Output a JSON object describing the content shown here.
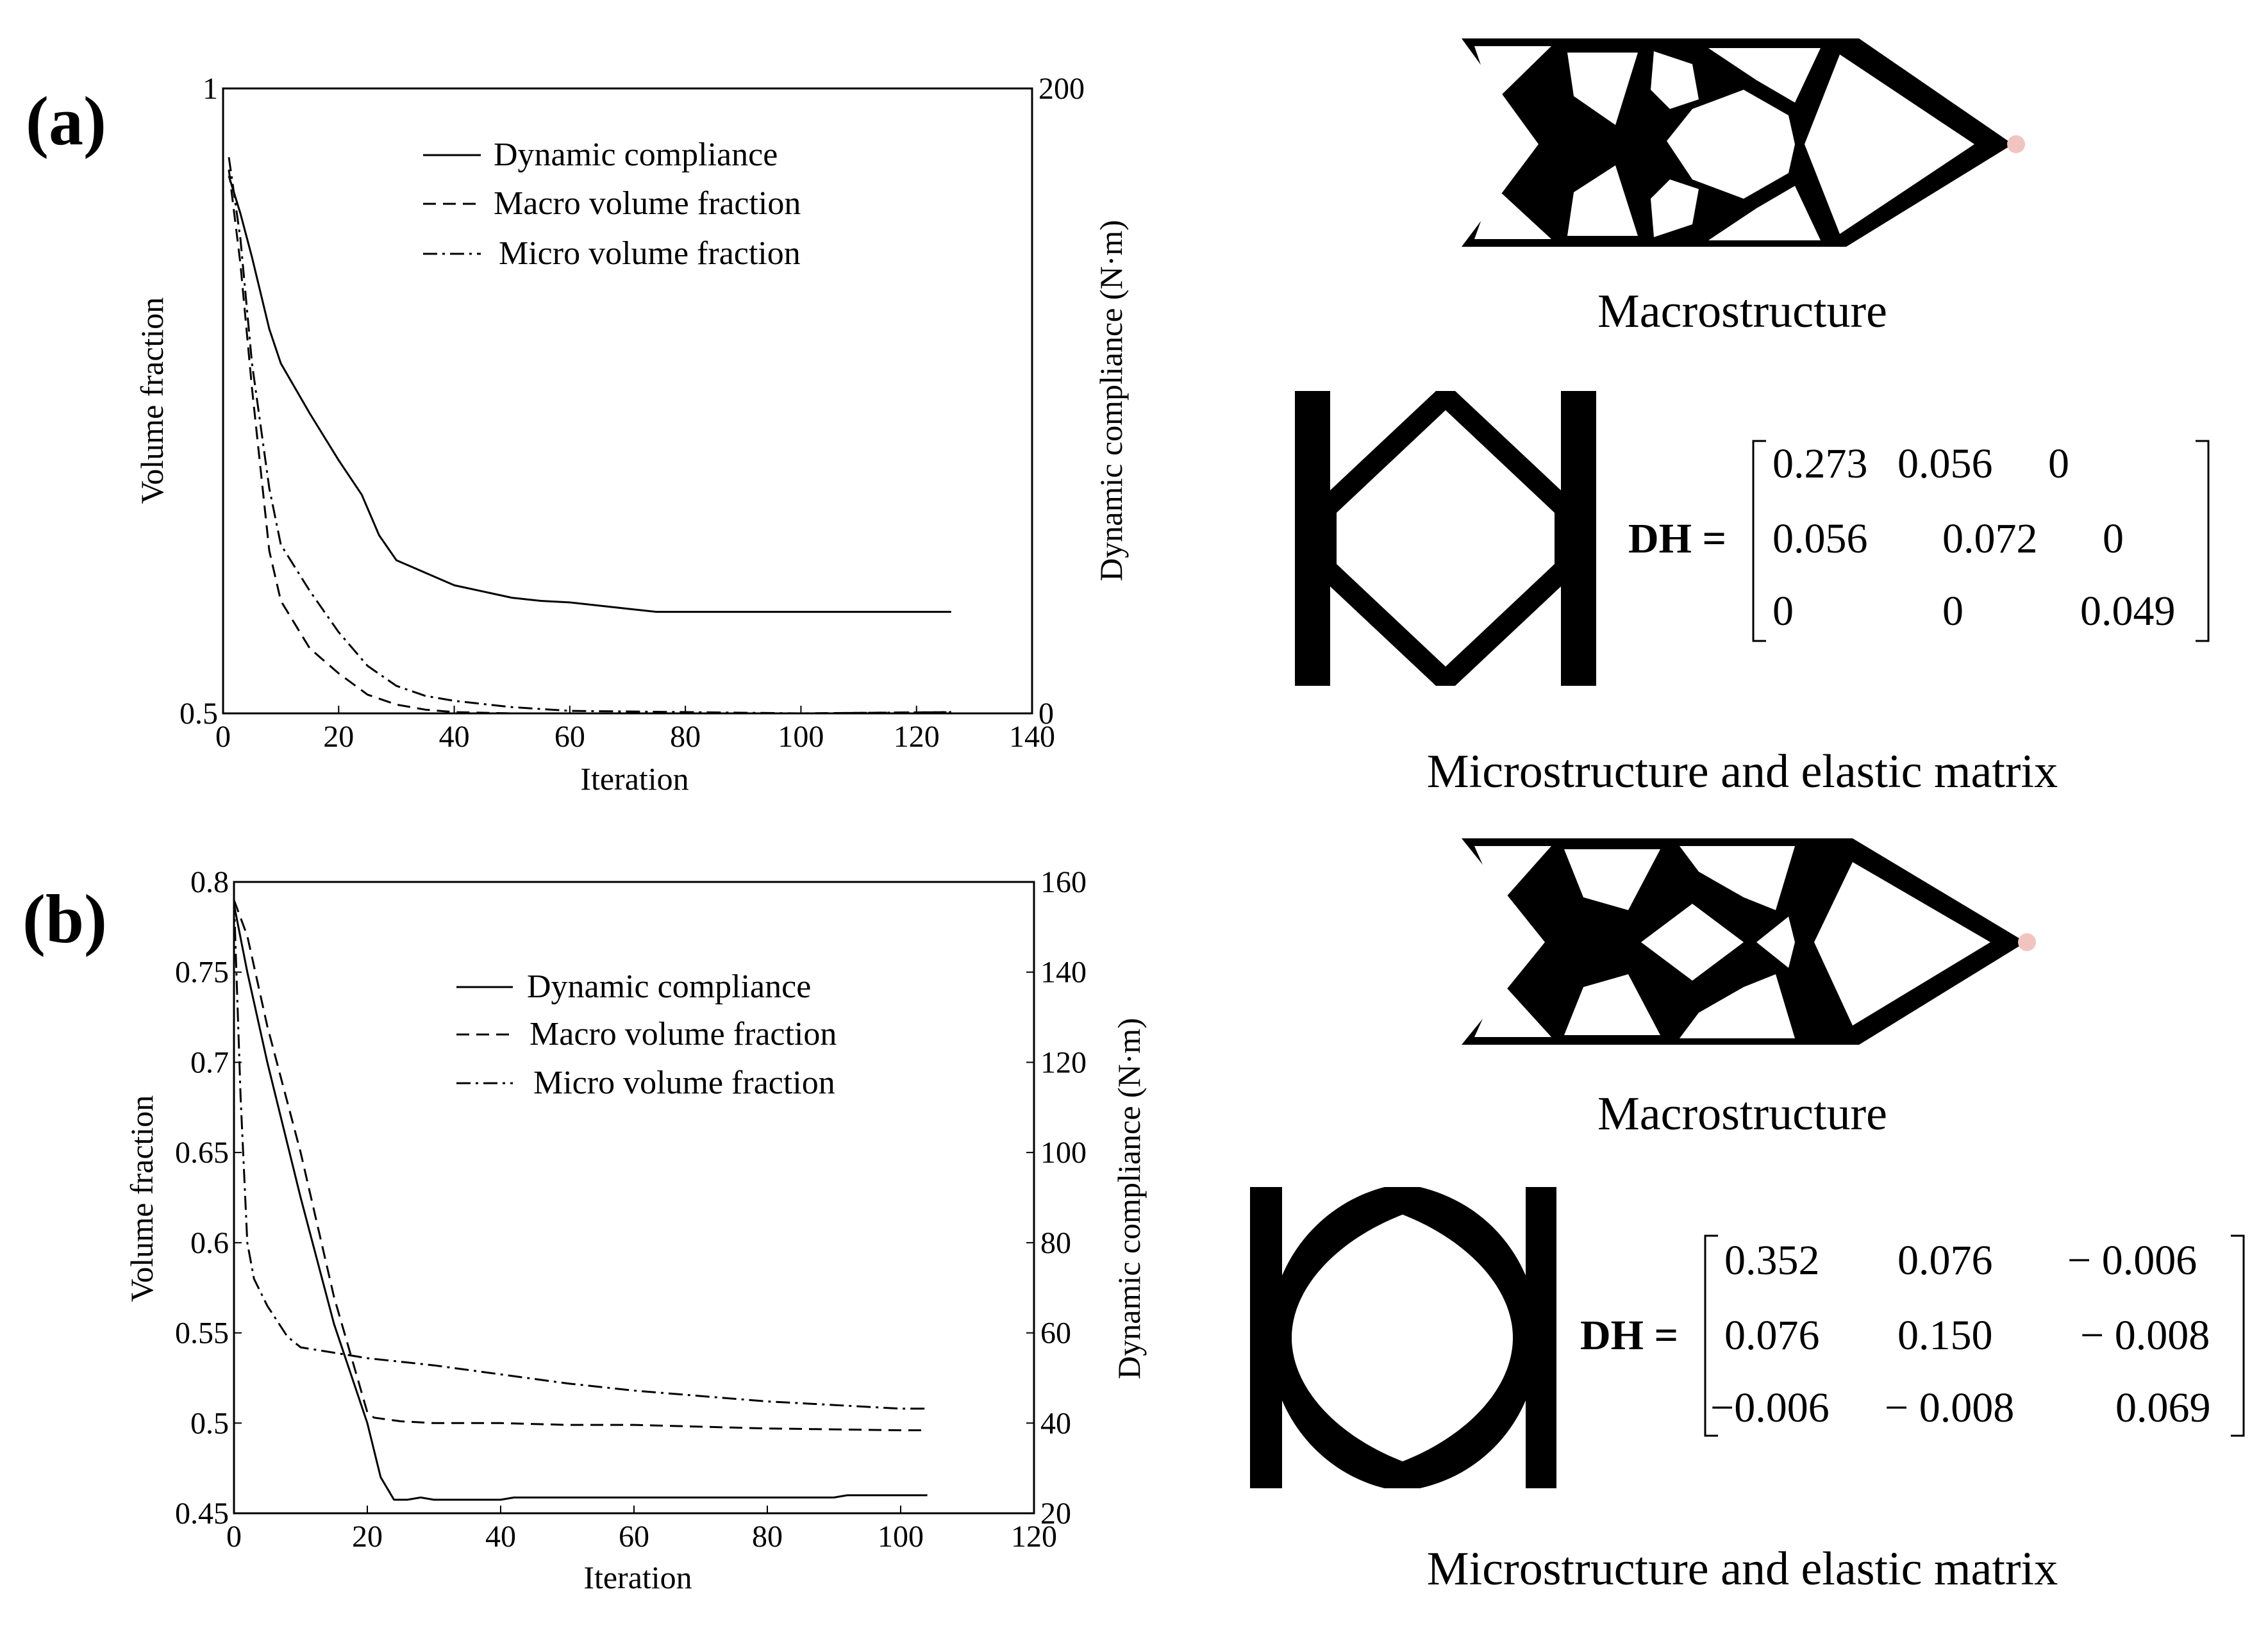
{
  "panels": {
    "a": {
      "label": "(a)",
      "macro_caption": "Macrostructure",
      "micro_caption": "Microstructure and elastic matrix",
      "matrix_label": "DH =",
      "matrix": [
        [
          "0.273",
          "0.056",
          "0"
        ],
        [
          "0.056",
          "0.072",
          "0"
        ],
        [
          "0",
          "0",
          "0.049"
        ]
      ]
    },
    "b": {
      "label": "(b)",
      "macro_caption": "Macrostructure",
      "micro_caption": "Microstructure and elastic matrix",
      "matrix_label": "DH =",
      "matrix": [
        [
          "0.352",
          "0.076",
          "− 0.006"
        ],
        [
          "0.076",
          "0.150",
          "− 0.008"
        ],
        [
          "−0.006",
          "− 0.008",
          "0.069"
        ]
      ]
    }
  },
  "colors": {
    "line": "#000000",
    "background": "#ffffff",
    "axis": "#000000",
    "load_point": "#f2c4c0"
  },
  "chart_data": [
    {
      "id": "a",
      "type": "line",
      "xlabel": "Iteration",
      "ylabel": "Volume fraction",
      "y2label": "Dynamic compliance (N·m)",
      "xlim": [
        0,
        140
      ],
      "ylim": [
        0.5,
        1
      ],
      "y2lim": [
        0,
        200
      ],
      "xticks": [
        "0",
        "20",
        "40",
        "60",
        "80",
        "100",
        "120",
        "140"
      ],
      "xtick_values": [
        0,
        20,
        40,
        60,
        80,
        100,
        120,
        140
      ],
      "yticks": [
        "0.5",
        "1"
      ],
      "ytick_values": [
        0.5,
        1
      ],
      "y2ticks": [
        "0",
        "200"
      ],
      "y2tick_values": [
        0,
        200
      ],
      "legend_position": "top-center",
      "series": [
        {
          "name": "Dynamic compliance",
          "axis": "right",
          "dash": "solid",
          "x": [
            1,
            3,
            5,
            8,
            10,
            15,
            20,
            24,
            27,
            30,
            35,
            40,
            50,
            55,
            60,
            70,
            75,
            80,
            100,
            120,
            126
          ],
          "values": [
            172,
            160,
            146,
            123,
            112,
            96,
            81,
            70,
            57,
            49,
            45,
            41,
            37,
            36,
            35.5,
            33.5,
            32.5,
            32.5,
            32.5,
            32.5,
            32.5
          ]
        },
        {
          "name": "Macro volume fraction",
          "axis": "left",
          "dash": "dashed",
          "x": [
            1,
            3,
            5,
            8,
            10,
            15,
            20,
            25,
            30,
            35,
            40,
            50,
            60,
            80,
            100,
            126
          ],
          "values": [
            0.935,
            0.86,
            0.76,
            0.63,
            0.59,
            0.552,
            0.532,
            0.515,
            0.507,
            0.503,
            0.501,
            0.5,
            0.5,
            0.5,
            0.5,
            0.501
          ]
        },
        {
          "name": "Micro volume fraction",
          "axis": "left",
          "dash": "dashdot",
          "x": [
            1,
            3,
            5,
            8,
            10,
            15,
            20,
            25,
            30,
            35,
            40,
            50,
            60,
            80,
            100,
            126
          ],
          "values": [
            0.945,
            0.88,
            0.78,
            0.68,
            0.635,
            0.598,
            0.565,
            0.538,
            0.522,
            0.514,
            0.51,
            0.505,
            0.502,
            0.501,
            0.5,
            0.501
          ]
        }
      ]
    },
    {
      "id": "b",
      "type": "line",
      "xlabel": "Iteration",
      "ylabel": "Volume fraction",
      "y2label": "Dynamic compliance (N·m)",
      "xlim": [
        0,
        120
      ],
      "ylim": [
        0.45,
        0.8
      ],
      "y2lim": [
        20,
        160
      ],
      "xticks": [
        "0",
        "20",
        "40",
        "60",
        "80",
        "100",
        "120"
      ],
      "xtick_values": [
        0,
        20,
        40,
        60,
        80,
        100,
        120
      ],
      "yticks": [
        "0.45",
        "0.5",
        "0.55",
        "0.6",
        "0.65",
        "0.7",
        "0.75",
        "0.8"
      ],
      "ytick_values": [
        0.45,
        0.5,
        0.55,
        0.6,
        0.65,
        0.7,
        0.75,
        0.8
      ],
      "y2ticks": [
        "20",
        "40",
        "60",
        "80",
        "100",
        "120",
        "140",
        "160"
      ],
      "y2tick_values": [
        20,
        40,
        60,
        80,
        100,
        120,
        140,
        160
      ],
      "legend_position": "top-center",
      "series": [
        {
          "name": "Dynamic compliance",
          "axis": "right",
          "dash": "solid",
          "x": [
            0,
            2,
            5,
            10,
            15,
            20,
            22,
            24,
            26,
            28,
            30,
            35,
            40,
            42,
            50,
            60,
            80,
            90,
            92,
            100,
            104
          ],
          "values": [
            155,
            140,
            120,
            90,
            62,
            40,
            28,
            23,
            23,
            23.5,
            23,
            23,
            23,
            23.5,
            23.5,
            23.5,
            23.5,
            23.5,
            24,
            24,
            24
          ]
        },
        {
          "name": "Macro volume fraction",
          "axis": "left",
          "dash": "dashed",
          "x": [
            0,
            2,
            5,
            10,
            15,
            20,
            21,
            25,
            30,
            40,
            50,
            60,
            80,
            100,
            104
          ],
          "values": [
            0.79,
            0.77,
            0.72,
            0.65,
            0.57,
            0.506,
            0.503,
            0.501,
            0.5,
            0.5,
            0.499,
            0.499,
            0.497,
            0.496,
            0.496
          ]
        },
        {
          "name": "Micro volume fraction",
          "axis": "left",
          "dash": "dashdot",
          "x": [
            0,
            1,
            2,
            3,
            5,
            8,
            10,
            15,
            20,
            30,
            40,
            50,
            60,
            70,
            80,
            90,
            100,
            104
          ],
          "values": [
            0.79,
            0.68,
            0.6,
            0.58,
            0.565,
            0.548,
            0.542,
            0.539,
            0.536,
            0.532,
            0.527,
            0.522,
            0.518,
            0.515,
            0.512,
            0.51,
            0.508,
            0.508
          ]
        }
      ]
    }
  ]
}
